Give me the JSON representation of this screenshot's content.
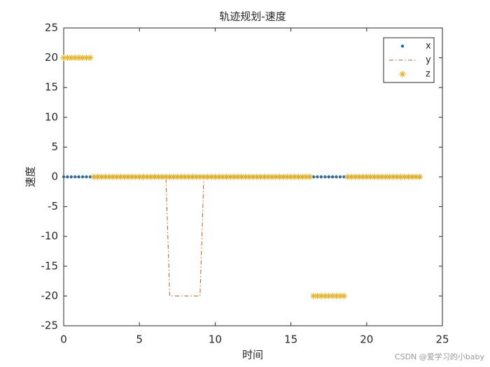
{
  "chart_data": {
    "type": "line",
    "title": "轨迹规划-速度",
    "xlabel": "时间",
    "ylabel": "速度",
    "x": [
      0,
      0.25,
      0.5,
      0.75,
      1,
      1.25,
      1.5,
      1.75,
      2,
      2.25,
      2.5,
      2.75,
      3,
      3.25,
      3.5,
      3.75,
      4,
      4.25,
      4.5,
      4.75,
      5,
      5.25,
      5.5,
      5.75,
      6,
      6.25,
      6.5,
      6.75,
      7,
      7.25,
      7.5,
      7.75,
      8,
      8.25,
      8.5,
      8.75,
      9,
      9.25,
      9.5,
      9.75,
      10,
      10.25,
      10.5,
      10.75,
      11,
      11.25,
      11.5,
      11.75,
      12,
      12.25,
      12.5,
      12.75,
      13,
      13.25,
      13.5,
      13.75,
      14,
      14.25,
      14.5,
      14.75,
      15,
      15.25,
      15.5,
      15.75,
      16,
      16.25,
      16.5,
      16.75,
      17,
      17.25,
      17.5,
      17.75,
      18,
      18.25,
      18.5,
      18.75,
      19,
      19.25,
      19.5,
      19.75,
      20,
      20.25,
      20.5,
      20.75,
      21,
      21.25,
      21.5,
      21.75,
      22,
      22.25,
      22.5,
      22.75,
      23,
      23.25,
      23.5
    ],
    "series": [
      {
        "name": "x",
        "color": "#0072BD",
        "marker": ".",
        "linestyle": "none",
        "values": [
          0,
          0,
          0,
          0,
          0,
          0,
          0,
          0,
          0,
          0,
          0,
          0,
          0,
          0,
          0,
          0,
          0,
          0,
          0,
          0,
          0,
          0,
          0,
          0,
          0,
          0,
          0,
          0,
          0,
          0,
          0,
          0,
          0,
          0,
          0,
          0,
          0,
          0,
          0,
          0,
          0,
          0,
          0,
          0,
          0,
          0,
          0,
          0,
          0,
          0,
          0,
          0,
          0,
          0,
          0,
          0,
          0,
          0,
          0,
          0,
          0,
          0,
          0,
          0,
          0,
          0,
          0,
          0,
          0,
          0,
          0,
          0,
          0,
          0,
          0,
          0,
          0,
          0,
          0,
          0,
          0,
          0,
          0,
          0,
          0,
          0,
          0,
          0,
          0,
          0,
          0,
          0,
          0,
          0,
          0
        ]
      },
      {
        "name": "y",
        "color": "#D95319",
        "marker": "none",
        "linestyle": "-.",
        "values": [
          0,
          0,
          0,
          0,
          0,
          0,
          0,
          0,
          0,
          0,
          0,
          0,
          0,
          0,
          0,
          0,
          0,
          0,
          0,
          0,
          0,
          0,
          0,
          0,
          0,
          0,
          0,
          0,
          -20,
          -20,
          -20,
          -20,
          -20,
          -20,
          -20,
          -20,
          -20,
          0,
          0,
          0,
          0,
          0,
          0,
          0,
          0,
          0,
          0,
          0,
          0,
          0,
          0,
          0,
          0,
          0,
          0,
          0,
          0,
          0,
          0,
          0,
          0,
          0,
          0,
          0,
          0,
          0,
          0,
          0,
          0,
          0,
          0,
          0,
          0,
          0,
          0,
          0,
          0,
          0,
          0,
          0,
          0,
          0,
          0,
          0,
          0,
          0,
          0,
          0,
          0,
          0,
          0,
          0,
          0,
          0,
          0
        ]
      },
      {
        "name": "z",
        "color": "#EDB120",
        "marker": "*",
        "linestyle": "none",
        "values": [
          20,
          20,
          20,
          20,
          20,
          20,
          20,
          20,
          0,
          0,
          0,
          0,
          0,
          0,
          0,
          0,
          0,
          0,
          0,
          0,
          0,
          0,
          0,
          0,
          0,
          0,
          0,
          0,
          0,
          0,
          0,
          0,
          0,
          0,
          0,
          0,
          0,
          0,
          0,
          0,
          0,
          0,
          0,
          0,
          0,
          0,
          0,
          0,
          0,
          0,
          0,
          0,
          0,
          0,
          0,
          0,
          0,
          0,
          0,
          0,
          0,
          0,
          0,
          0,
          0,
          0,
          -20,
          -20,
          -20,
          -20,
          -20,
          -20,
          -20,
          -20,
          -20,
          0,
          0,
          0,
          0,
          0,
          0,
          0,
          0,
          0,
          0,
          0,
          0,
          0,
          0,
          0,
          0,
          0,
          0,
          0,
          0
        ]
      }
    ],
    "xlim": [
      0,
      25
    ],
    "xticks": [
      0,
      5,
      10,
      15,
      20,
      25
    ],
    "ylim": [
      -25,
      25
    ],
    "yticks": [
      -25,
      -20,
      -15,
      -10,
      -5,
      0,
      5,
      10,
      15,
      20,
      25
    ],
    "grid": false,
    "legend": "northeast",
    "watermark": "CSDN @爱学习的小baby"
  }
}
